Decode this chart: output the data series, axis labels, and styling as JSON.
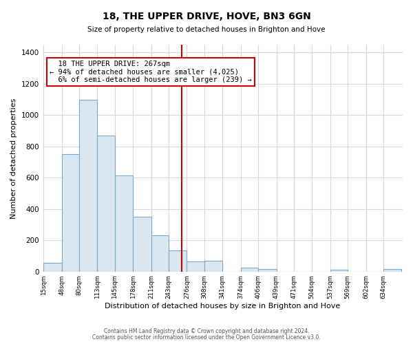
{
  "title": "18, THE UPPER DRIVE, HOVE, BN3 6GN",
  "subtitle": "Size of property relative to detached houses in Brighton and Hove",
  "xlabel": "Distribution of detached houses by size in Brighton and Hove",
  "ylabel": "Number of detached properties",
  "footnote1": "Contains HM Land Registry data © Crown copyright and database right 2024.",
  "footnote2": "Contains public sector information licensed under the Open Government Licence v3.0.",
  "bar_edges": [
    15,
    48,
    80,
    113,
    145,
    178,
    211,
    243,
    276,
    308,
    341,
    374,
    406,
    439,
    471,
    504,
    537,
    569,
    602,
    634,
    667
  ],
  "bar_heights": [
    55,
    750,
    1100,
    870,
    615,
    350,
    230,
    135,
    65,
    70,
    0,
    25,
    15,
    0,
    0,
    0,
    10,
    0,
    0,
    15
  ],
  "bar_color": "#dae6f0",
  "bar_edgecolor": "#7aaaca",
  "vline_x": 267,
  "vline_color": "#cc0000",
  "annotation_line1": "  18 THE UPPER DRIVE: 267sqm",
  "annotation_line2": "← 94% of detached houses are smaller (4,025)",
  "annotation_line3": "  6% of semi-detached houses are larger (239) →",
  "annotation_box_edgecolor": "#cc0000",
  "ylim": [
    0,
    1450
  ],
  "background_color": "#ffffff",
  "plot_background": "#ffffff",
  "grid_color": "#d0d8e8"
}
